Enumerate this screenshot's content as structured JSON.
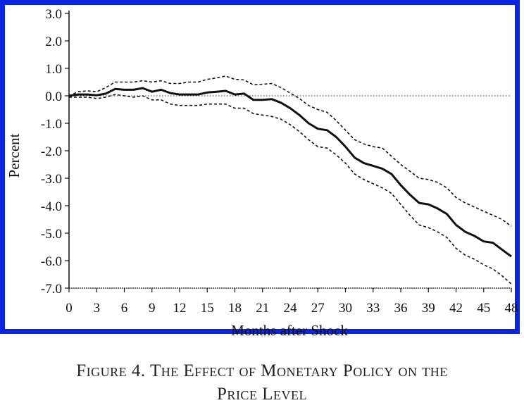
{
  "caption": {
    "line1": "Figure 4. The Effect of Monetary Policy on the",
    "line2": "Price Level"
  },
  "colors": {
    "frame": "#0b24e0",
    "line": "#111111"
  },
  "chart_data": {
    "type": "line",
    "xlabel": "Months after Shock",
    "ylabel": "Percent",
    "xlim": [
      0,
      48
    ],
    "ylim": [
      -7,
      3
    ],
    "xticks": [
      0,
      3,
      6,
      9,
      12,
      15,
      18,
      21,
      24,
      27,
      30,
      33,
      36,
      39,
      42,
      45,
      48
    ],
    "yticks": [
      3,
      2,
      1,
      0,
      -1,
      -2,
      -3,
      -4,
      -5,
      -6,
      -7
    ],
    "ytick_labels": [
      "3.0",
      "2.0",
      "1.0",
      "0.0",
      "-1.0",
      "-2.0",
      "-3.0",
      "-4.0",
      "-5.0",
      "-6.0",
      "-7.0"
    ],
    "grid": false,
    "reference_line": {
      "y": 0,
      "style": "dotted"
    },
    "x": [
      0,
      1,
      2,
      3,
      4,
      5,
      6,
      7,
      8,
      9,
      10,
      11,
      12,
      13,
      14,
      15,
      16,
      17,
      18,
      19,
      20,
      21,
      22,
      23,
      24,
      25,
      26,
      27,
      28,
      29,
      30,
      31,
      32,
      33,
      34,
      35,
      36,
      37,
      38,
      39,
      40,
      41,
      42,
      43,
      44,
      45,
      46,
      47,
      48
    ],
    "series": [
      {
        "style": "solid",
        "values": [
          0.0,
          0.05,
          0.05,
          0.02,
          0.08,
          0.25,
          0.22,
          0.22,
          0.28,
          0.15,
          0.22,
          0.1,
          0.05,
          0.05,
          0.05,
          0.12,
          0.15,
          0.18,
          0.05,
          0.08,
          -0.15,
          -0.15,
          -0.12,
          -0.25,
          -0.45,
          -0.7,
          -1.0,
          -1.2,
          -1.25,
          -1.5,
          -1.85,
          -2.25,
          -2.45,
          -2.55,
          -2.65,
          -2.85,
          -3.25,
          -3.6,
          -3.9,
          -3.95,
          -4.1,
          -4.3,
          -4.7,
          -4.95,
          -5.1,
          -5.3,
          -5.35,
          -5.6,
          -5.85
        ]
      },
      {
        "style": "dashed",
        "values": [
          0.0,
          0.15,
          0.18,
          0.15,
          0.3,
          0.5,
          0.5,
          0.5,
          0.55,
          0.5,
          0.55,
          0.45,
          0.45,
          0.5,
          0.5,
          0.6,
          0.65,
          0.72,
          0.6,
          0.58,
          0.4,
          0.42,
          0.45,
          0.3,
          0.1,
          -0.1,
          -0.35,
          -0.5,
          -0.6,
          -0.9,
          -1.25,
          -1.6,
          -1.75,
          -1.85,
          -1.9,
          -2.2,
          -2.5,
          -2.75,
          -3.0,
          -3.05,
          -3.15,
          -3.35,
          -3.7,
          -3.9,
          -4.05,
          -4.2,
          -4.35,
          -4.5,
          -4.75
        ]
      },
      {
        "style": "dashed",
        "values": [
          -0.05,
          -0.05,
          -0.05,
          -0.1,
          -0.05,
          0.05,
          0.0,
          -0.05,
          0.0,
          -0.15,
          -0.15,
          -0.3,
          -0.35,
          -0.35,
          -0.35,
          -0.3,
          -0.3,
          -0.3,
          -0.45,
          -0.45,
          -0.65,
          -0.7,
          -0.75,
          -0.85,
          -1.05,
          -1.3,
          -1.6,
          -1.85,
          -1.9,
          -2.15,
          -2.45,
          -2.85,
          -3.05,
          -3.2,
          -3.35,
          -3.55,
          -3.95,
          -4.35,
          -4.7,
          -4.8,
          -4.95,
          -5.15,
          -5.55,
          -5.8,
          -5.95,
          -6.15,
          -6.3,
          -6.55,
          -6.85
        ]
      }
    ]
  }
}
